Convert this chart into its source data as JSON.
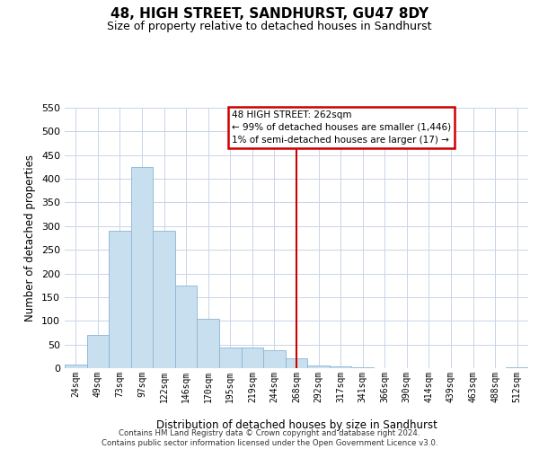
{
  "title": "48, HIGH STREET, SANDHURST, GU47 8DY",
  "subtitle": "Size of property relative to detached houses in Sandhurst",
  "xlabel": "Distribution of detached houses by size in Sandhurst",
  "ylabel": "Number of detached properties",
  "bin_labels": [
    "24sqm",
    "49sqm",
    "73sqm",
    "97sqm",
    "122sqm",
    "146sqm",
    "170sqm",
    "195sqm",
    "219sqm",
    "244sqm",
    "268sqm",
    "292sqm",
    "317sqm",
    "341sqm",
    "366sqm",
    "390sqm",
    "414sqm",
    "439sqm",
    "463sqm",
    "488sqm",
    "512sqm"
  ],
  "bar_heights": [
    8,
    70,
    290,
    425,
    290,
    175,
    105,
    43,
    43,
    37,
    20,
    5,
    3,
    1,
    0,
    0,
    0,
    0,
    0,
    0,
    2
  ],
  "bar_color": "#c8dff0",
  "bar_edge_color": "#8ab4d4",
  "ylim": [
    0,
    550
  ],
  "yticks": [
    0,
    50,
    100,
    150,
    200,
    250,
    300,
    350,
    400,
    450,
    500,
    550
  ],
  "vline_x": 10.0,
  "vline_color": "#cc0000",
  "annotation_title": "48 HIGH STREET: 262sqm",
  "annotation_line1": "← 99% of detached houses are smaller (1,446)",
  "annotation_line2": "1% of semi-detached houses are larger (17) →",
  "footer_line1": "Contains HM Land Registry data © Crown copyright and database right 2024.",
  "footer_line2": "Contains public sector information licensed under the Open Government Licence v3.0.",
  "background_color": "#ffffff",
  "grid_color": "#c8d4e8"
}
